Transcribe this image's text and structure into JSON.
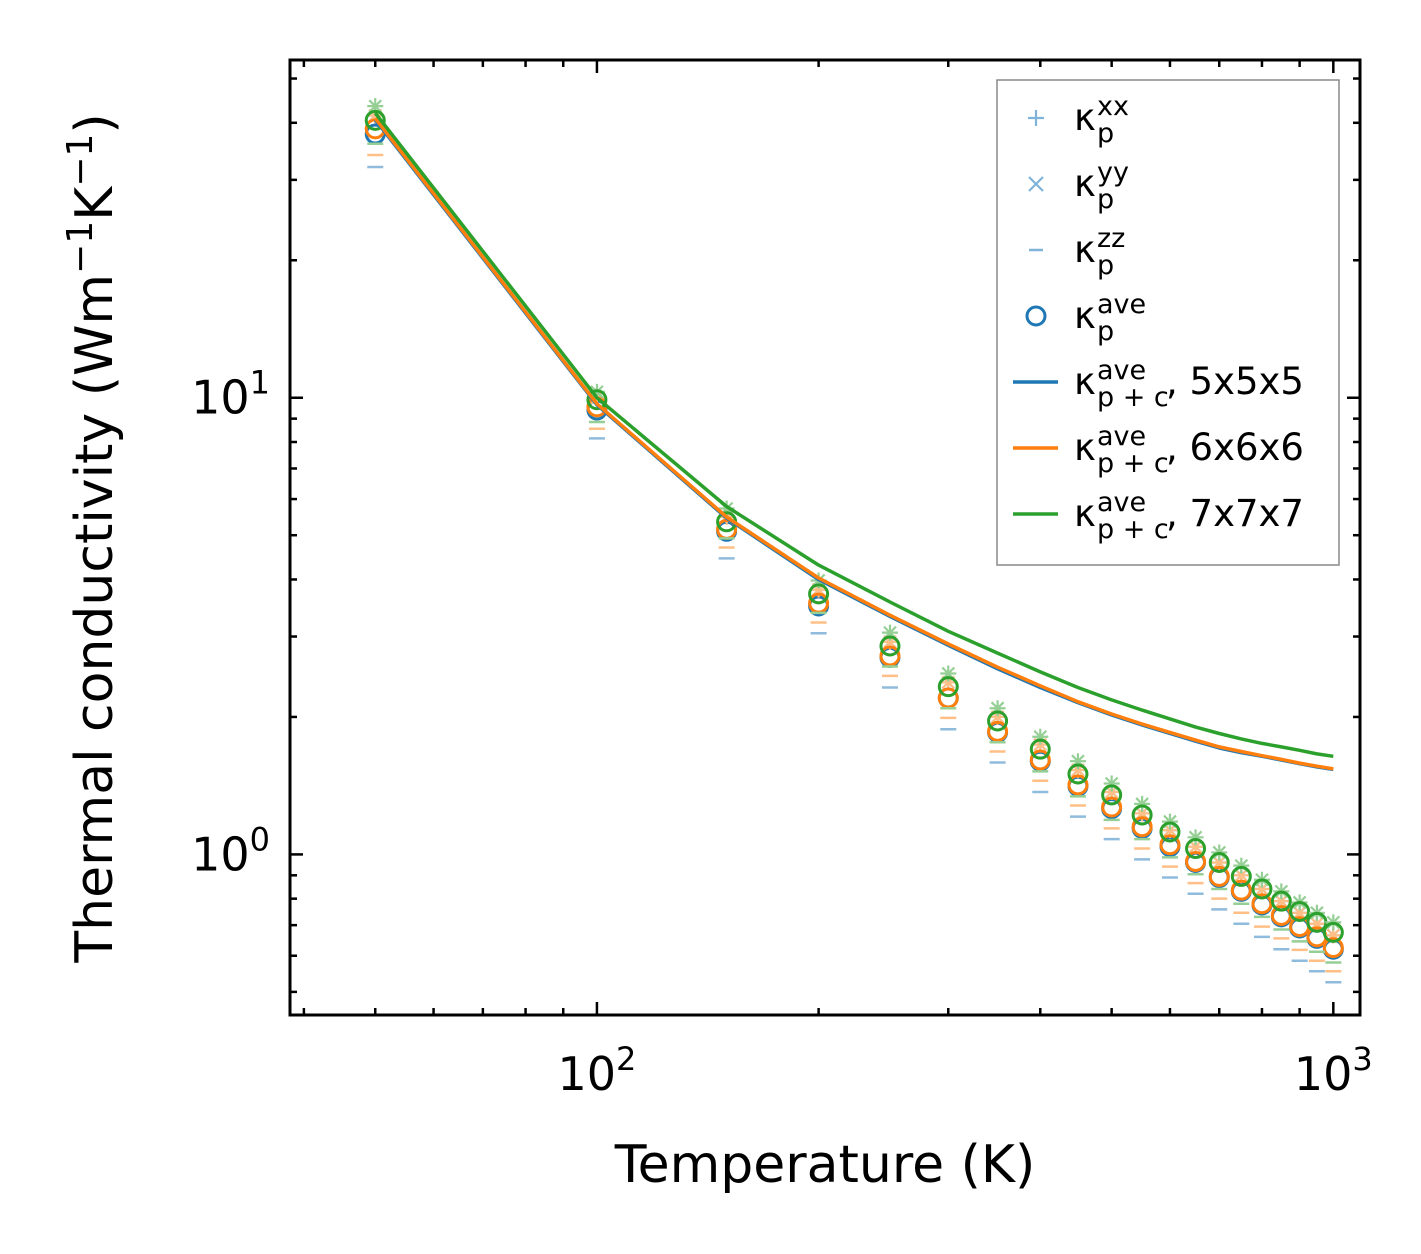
{
  "chart_data": {
    "type": "scatter",
    "xlabel": "Temperature (K)",
    "ylabel": {
      "main": "Thermal conductivity (Wm",
      "exp1": "−1",
      "mid": "K",
      "exp2": "−1",
      "close": ")"
    },
    "xscale": "log",
    "yscale": "log",
    "xlim": [
      38.3,
      1087
    ],
    "ylim": [
      0.445,
      54.9
    ],
    "x_ticks": [
      {
        "value": 100,
        "base": "10",
        "exp": "2"
      },
      {
        "value": 1000,
        "base": "10",
        "exp": "3"
      }
    ],
    "y_ticks": [
      {
        "value": 1,
        "base": "10",
        "exp": "0"
      },
      {
        "value": 10,
        "base": "10",
        "exp": "1"
      }
    ],
    "colors": {
      "5x5x5": "#1f77b4",
      "6x6x6": "#ff7f0e",
      "7x7x7": "#2ca02c"
    },
    "temperatures": [
      50,
      100,
      150,
      200,
      250,
      300,
      350,
      400,
      450,
      500,
      550,
      600,
      650,
      700,
      750,
      800,
      850,
      900,
      950,
      1000
    ],
    "series": [
      {
        "name": "5x5x5",
        "kappa_p_xx": [
          41.5,
          10.0,
          5.48,
          3.8,
          2.92,
          2.38,
          2.0,
          1.74,
          1.53,
          1.37,
          1.23,
          1.13,
          1.04,
          0.96,
          0.9,
          0.84,
          0.79,
          0.745,
          0.705,
          0.665
        ],
        "kappa_p_yy": [
          41.5,
          10.0,
          5.48,
          3.8,
          2.92,
          2.38,
          2.0,
          1.74,
          1.53,
          1.37,
          1.23,
          1.13,
          1.04,
          0.96,
          0.9,
          0.84,
          0.79,
          0.745,
          0.705,
          0.665
        ],
        "kappa_p_zz": [
          32.0,
          8.15,
          4.45,
          3.05,
          2.32,
          1.88,
          1.59,
          1.37,
          1.21,
          1.08,
          0.975,
          0.89,
          0.82,
          0.758,
          0.705,
          0.66,
          0.62,
          0.585,
          0.555,
          0.525
        ],
        "kappa_p_ave": [
          37.8,
          9.4,
          5.1,
          3.5,
          2.7,
          2.2,
          1.85,
          1.6,
          1.41,
          1.26,
          1.14,
          1.04,
          0.96,
          0.89,
          0.83,
          0.775,
          0.73,
          0.69,
          0.655,
          0.62
        ],
        "kappa_pc_ave": [
          40.6,
          9.65,
          5.45,
          4.0,
          3.32,
          2.87,
          2.55,
          2.32,
          2.15,
          2.02,
          1.92,
          1.84,
          1.77,
          1.71,
          1.67,
          1.64,
          1.61,
          1.58,
          1.555,
          1.535
        ]
      },
      {
        "name": "6x6x6",
        "kappa_p_xx": [
          41.5,
          10.0,
          5.48,
          3.8,
          2.92,
          2.38,
          2.0,
          1.74,
          1.53,
          1.37,
          1.23,
          1.13,
          1.04,
          0.96,
          0.9,
          0.84,
          0.79,
          0.745,
          0.705,
          0.665
        ],
        "kappa_p_yy": [
          41.5,
          10.0,
          5.48,
          3.8,
          2.92,
          2.38,
          2.0,
          1.74,
          1.53,
          1.37,
          1.23,
          1.13,
          1.04,
          0.96,
          0.9,
          0.84,
          0.79,
          0.745,
          0.705,
          0.665
        ],
        "kappa_p_zz": [
          34.0,
          8.55,
          4.7,
          3.22,
          2.46,
          1.99,
          1.68,
          1.45,
          1.28,
          1.14,
          1.03,
          0.94,
          0.865,
          0.8,
          0.745,
          0.695,
          0.655,
          0.618,
          0.585,
          0.555
        ],
        "kappa_p_ave": [
          38.8,
          9.55,
          5.15,
          3.55,
          2.72,
          2.2,
          1.86,
          1.61,
          1.42,
          1.27,
          1.15,
          1.05,
          0.965,
          0.895,
          0.835,
          0.78,
          0.735,
          0.695,
          0.66,
          0.625
        ],
        "kappa_pc_ave": [
          40.9,
          9.7,
          5.48,
          4.03,
          3.34,
          2.89,
          2.57,
          2.34,
          2.16,
          2.03,
          1.93,
          1.85,
          1.78,
          1.72,
          1.68,
          1.645,
          1.615,
          1.585,
          1.56,
          1.54
        ]
      },
      {
        "name": "7x7x7",
        "kappa_p_xx": [
          43.5,
          10.3,
          5.72,
          3.98,
          3.06,
          2.49,
          2.09,
          1.81,
          1.6,
          1.43,
          1.29,
          1.18,
          1.09,
          1.01,
          0.945,
          0.88,
          0.83,
          0.785,
          0.745,
          0.71
        ],
        "kappa_p_yy": [
          43.5,
          10.3,
          5.72,
          3.98,
          3.06,
          2.49,
          2.09,
          1.81,
          1.6,
          1.43,
          1.29,
          1.18,
          1.09,
          1.01,
          0.945,
          0.88,
          0.83,
          0.785,
          0.745,
          0.71
        ],
        "kappa_p_zz": [
          36.0,
          8.85,
          4.92,
          3.38,
          2.58,
          2.09,
          1.76,
          1.52,
          1.34,
          1.19,
          1.08,
          0.985,
          0.905,
          0.84,
          0.78,
          0.73,
          0.685,
          0.645,
          0.612,
          0.58
        ],
        "kappa_p_ave": [
          40.5,
          9.9,
          5.35,
          3.72,
          2.86,
          2.33,
          1.96,
          1.7,
          1.5,
          1.35,
          1.22,
          1.12,
          1.03,
          0.96,
          0.895,
          0.84,
          0.79,
          0.75,
          0.71,
          0.675
        ],
        "kappa_pc_ave": [
          42.0,
          10.0,
          5.78,
          4.3,
          3.57,
          3.08,
          2.76,
          2.51,
          2.32,
          2.18,
          2.07,
          1.98,
          1.9,
          1.84,
          1.79,
          1.75,
          1.72,
          1.69,
          1.66,
          1.64
        ]
      }
    ],
    "legend": {
      "position": "top-right",
      "entries": [
        {
          "key": "xx",
          "marker": "plus",
          "color": "#7fb3d9",
          "symbol": "κ",
          "sub": "p",
          "sup": "xx",
          "suffix": ""
        },
        {
          "key": "yy",
          "marker": "cross",
          "color": "#7fb3d9",
          "symbol": "κ",
          "sub": "p",
          "sup": "yy",
          "suffix": ""
        },
        {
          "key": "zz",
          "marker": "dash",
          "color": "#7fb3d9",
          "symbol": "κ",
          "sub": "p",
          "sup": "zz",
          "suffix": ""
        },
        {
          "key": "ave",
          "marker": "circle",
          "color": "#1f77b4",
          "symbol": "κ",
          "sub": "p",
          "sup": "ave",
          "suffix": ""
        },
        {
          "key": "pc5",
          "marker": "line",
          "color": "#1f77b4",
          "symbol": "κ",
          "sub": "p + c",
          "sup": "ave",
          "suffix": ", 5x5x5"
        },
        {
          "key": "pc6",
          "marker": "line",
          "color": "#ff7f0e",
          "symbol": "κ",
          "sub": "p + c",
          "sup": "ave",
          "suffix": ", 6x6x6"
        },
        {
          "key": "pc7",
          "marker": "line",
          "color": "#2ca02c",
          "symbol": "κ",
          "sub": "p + c",
          "sup": "ave",
          "suffix": ", 7x7x7"
        }
      ]
    }
  }
}
